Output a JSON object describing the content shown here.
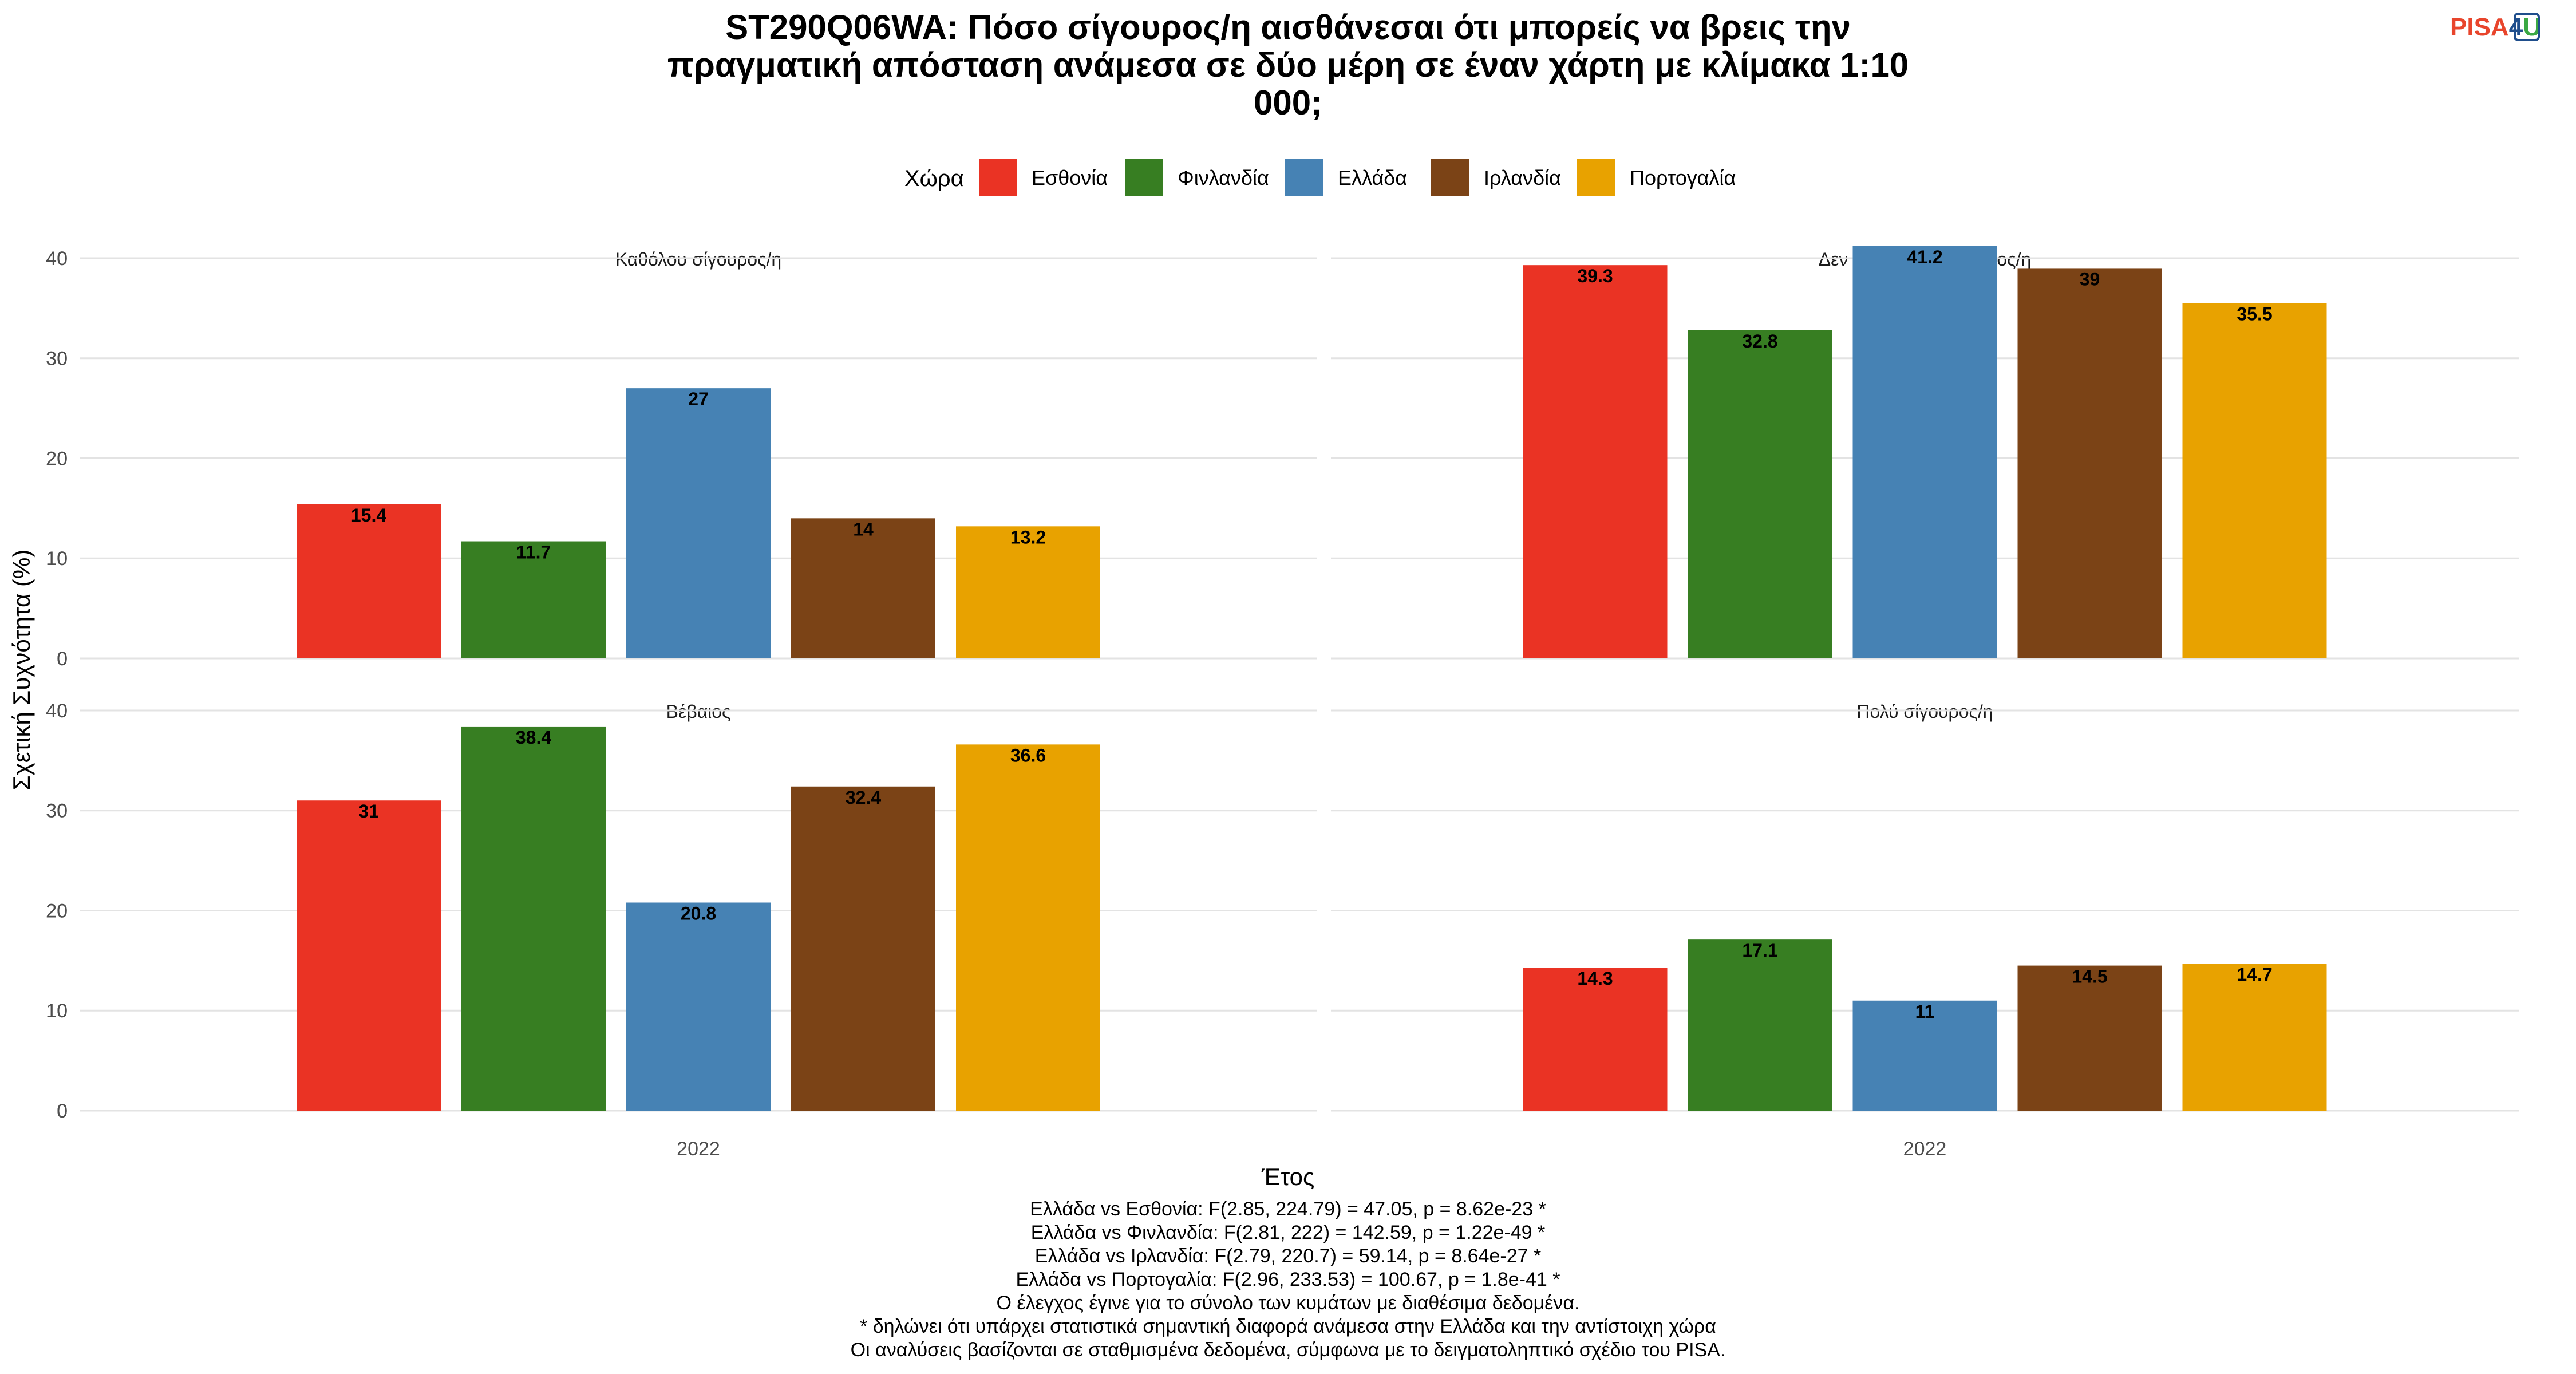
{
  "logo": {
    "text_main": "PISA",
    "text_num": "4",
    "text_end": "U",
    "color_main": "#e8452c",
    "color_num": "#1f4e8c",
    "color_end": "#3aa843"
  },
  "chart_data": {
    "type": "bar",
    "title_lines": [
      "ST290Q06WA: Πόσο σίγουρος/η αισθάνεσαι ότι μπορείς να βρεις την",
      "πραγματική απόσταση ανάμεσα σε δύο μέρη σε έναν χάρτη με κλίμακα 1:10",
      "000;"
    ],
    "xlabel": "Έτος",
    "ylabel": "Σχετική Συχνότητα (%)",
    "legend": {
      "title": "Χώρα",
      "position": "top"
    },
    "categories": [
      "2022"
    ],
    "ylim": [
      0,
      42
    ],
    "yticks": [
      0,
      10,
      20,
      30,
      40
    ],
    "grid": true,
    "series": [
      {
        "name": "Εσθονία",
        "color": "#ea3324"
      },
      {
        "name": "Φινλανδία",
        "color": "#377e22"
      },
      {
        "name": "Ελλάδα",
        "color": "#4682b4"
      },
      {
        "name": "Ιρλανδία",
        "color": "#7b4316"
      },
      {
        "name": "Πορτογαλία",
        "color": "#e8a200"
      }
    ],
    "panels": [
      {
        "title": "Καθόλου σίγουρος/η",
        "values": [
          15.4,
          11.7,
          27,
          14,
          13.2
        ]
      },
      {
        "title": "Δεν είμαι πολύ σίγουρος/η",
        "values": [
          39.3,
          32.8,
          41.2,
          39,
          35.5
        ]
      },
      {
        "title": "Βέβαιος",
        "values": [
          31,
          38.4,
          20.8,
          32.4,
          36.6
        ]
      },
      {
        "title": "Πολύ σίγουρος/η",
        "values": [
          14.3,
          17.1,
          11,
          14.5,
          14.7
        ]
      }
    ],
    "footnotes": [
      "Ελλάδα vs Εσθονία: F(2.85, 224.79) = 47.05, p = 8.62e-23 *",
      "Ελλάδα vs Φινλανδία: F(2.81, 222) = 142.59, p = 1.22e-49 *",
      "Ελλάδα vs Ιρλανδία: F(2.79, 220.7) = 59.14, p = 8.64e-27 *",
      "Ελλάδα vs Πορτογαλία: F(2.96, 233.53) = 100.67, p = 1.8e-41 *",
      "Ο έλεγχος έγινε για το σύνολο των κυμάτων με διαθέσιμα δεδομένα.",
      "* δηλώνει ότι υπάρχει στατιστικά σημαντική διαφορά ανάμεσα στην Ελλάδα και την αντίστοιχη χώρα",
      "Οι αναλύσεις βασίζονται σε σταθμισμένα δεδομένα, σύμφωνα με το δειγματοληπτικό σχέδιο του PISA."
    ]
  }
}
